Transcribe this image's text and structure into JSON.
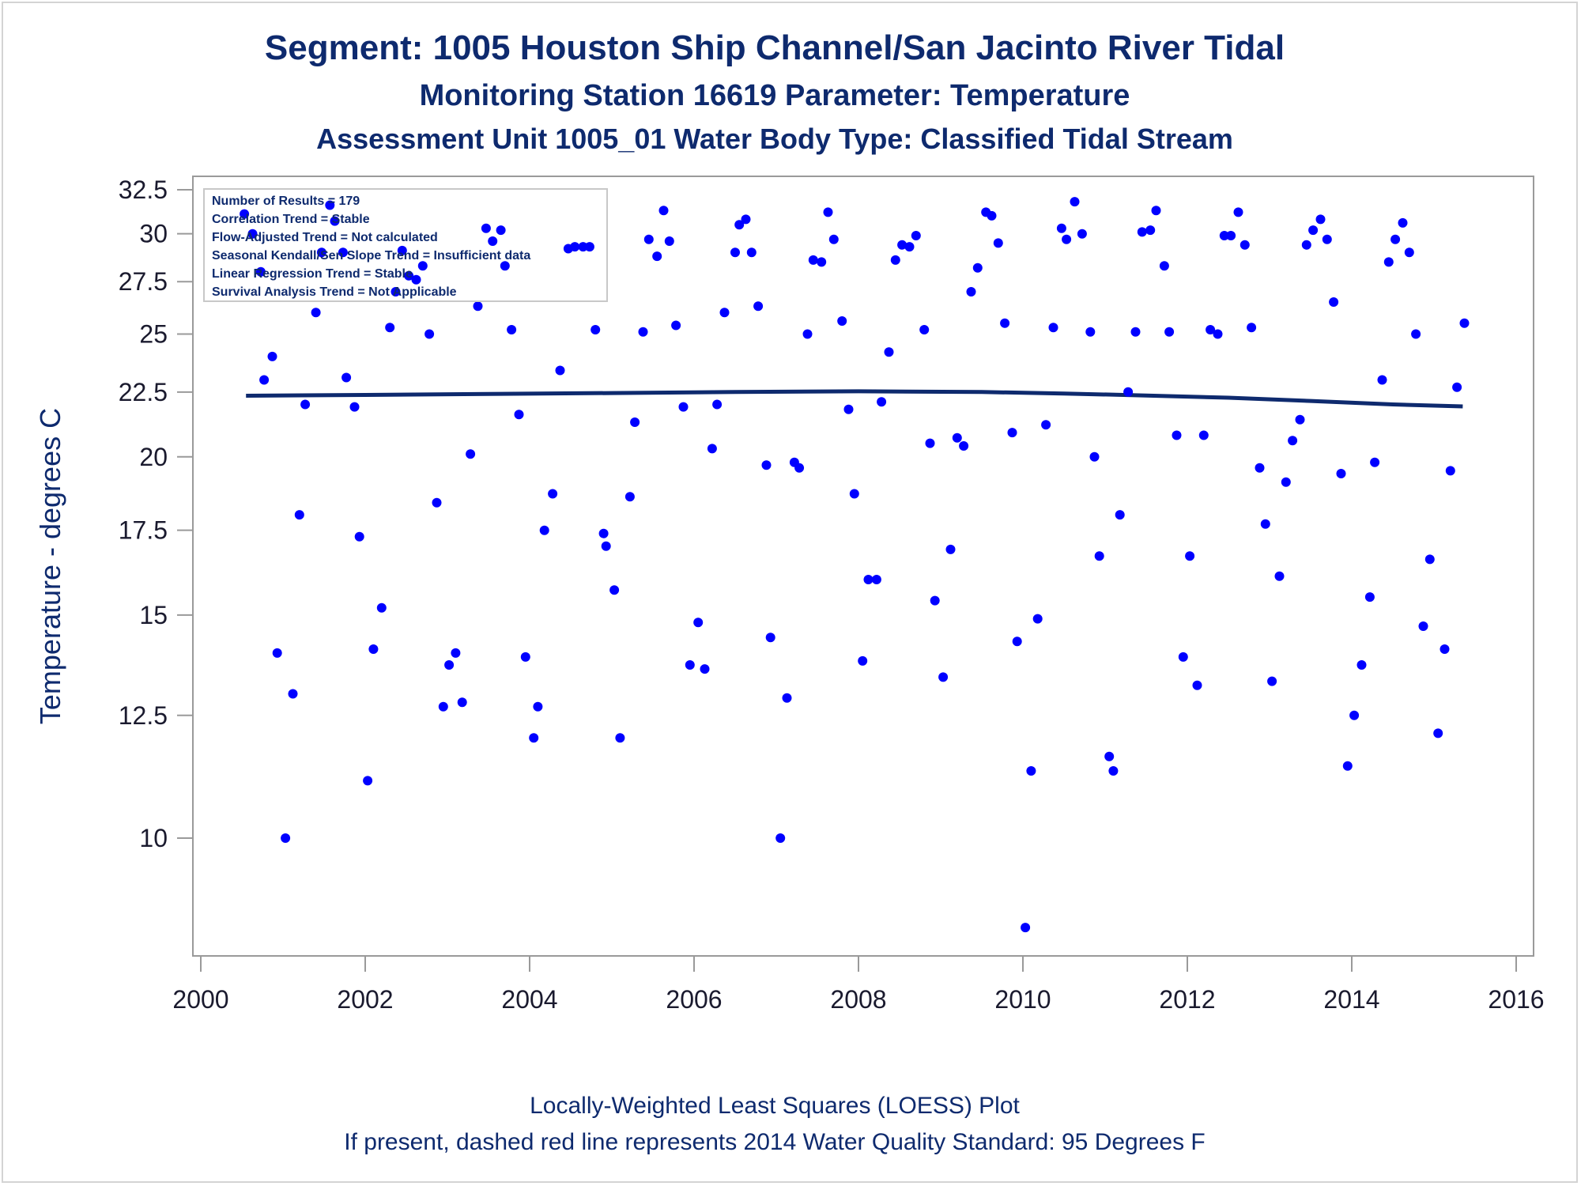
{
  "titles": {
    "line1": "Segment: 1005  Houston Ship Channel/San Jacinto River Tidal",
    "line2": "Monitoring Station 16619 Parameter: Temperature",
    "line3": "Assessment Unit 1005_01   Water Body Type: Classified Tidal Stream"
  },
  "footnotes": {
    "line1": "Locally-Weighted Least Squares (LOESS) Plot",
    "line2": "If present, dashed red line represents 2014 Water Quality Standard: 95   Degrees F"
  },
  "stats_box": [
    "Number of Results = 179",
    "Correlation Trend = Stable",
    "Flow-Adjusted Trend = Not calculated",
    "Seasonal Kendall/Sen Slope Trend = Insufficient data",
    "Linear Regression Trend = Stable",
    "Survival Analysis Trend = Not Applicable"
  ],
  "colors": {
    "points": "#0000ff",
    "loess": "#0e2a6e",
    "text": "#0e2a6e",
    "frame": "#9a9a9a"
  },
  "chart_data": {
    "type": "scatter",
    "title": "Segment: 1005  Houston Ship Channel/San Jacinto River Tidal",
    "xlabel": "",
    "ylabel": "Temperature - degrees C",
    "xlim": [
      2000,
      2016
    ],
    "ylim": [
      8,
      32.5
    ],
    "x_ticks": [
      "2000",
      "2002",
      "2004",
      "2006",
      "2008",
      "2010",
      "2012",
      "2014",
      "2016"
    ],
    "y_ticks": [
      "10",
      "12.5",
      "15",
      "17.5",
      "20",
      "22.5",
      "25",
      "27.5",
      "30",
      "32.5"
    ],
    "y_scale": "log",
    "grid": false,
    "legend": "top-left",
    "series": [
      {
        "type": "scatter",
        "points": [
          [
            2000.53,
            31.1
          ],
          [
            2000.63,
            30.0
          ],
          [
            2000.73,
            28.0
          ],
          [
            2000.77,
            23.0
          ],
          [
            2000.87,
            24.0
          ],
          [
            2000.93,
            14.0
          ],
          [
            2001.03,
            10.0
          ],
          [
            2001.12,
            13.0
          ],
          [
            2001.2,
            18.0
          ],
          [
            2001.27,
            22.0
          ],
          [
            2001.4,
            26.0
          ],
          [
            2001.47,
            29.0
          ],
          [
            2001.57,
            31.6
          ],
          [
            2001.63,
            30.7
          ],
          [
            2001.73,
            29.0
          ],
          [
            2001.77,
            23.1
          ],
          [
            2001.87,
            21.9
          ],
          [
            2001.93,
            17.3
          ],
          [
            2002.03,
            11.1
          ],
          [
            2002.1,
            14.1
          ],
          [
            2002.2,
            15.2
          ],
          [
            2002.3,
            25.3
          ],
          [
            2002.37,
            27.0
          ],
          [
            2002.45,
            29.1
          ],
          [
            2002.53,
            27.8
          ],
          [
            2002.62,
            27.6
          ],
          [
            2002.7,
            28.3
          ],
          [
            2002.78,
            25.0
          ],
          [
            2002.87,
            18.4
          ],
          [
            2002.95,
            12.7
          ],
          [
            2003.02,
            13.7
          ],
          [
            2003.1,
            14.0
          ],
          [
            2003.18,
            12.8
          ],
          [
            2003.28,
            20.1
          ],
          [
            2003.37,
            26.3
          ],
          [
            2003.47,
            30.3
          ],
          [
            2003.55,
            29.6
          ],
          [
            2003.65,
            30.2
          ],
          [
            2003.7,
            28.3
          ],
          [
            2003.78,
            25.2
          ],
          [
            2003.87,
            21.6
          ],
          [
            2003.95,
            13.9
          ],
          [
            2004.05,
            12.0
          ],
          [
            2004.1,
            12.7
          ],
          [
            2004.18,
            17.5
          ],
          [
            2004.28,
            18.7
          ],
          [
            2004.37,
            23.4
          ],
          [
            2004.47,
            29.2
          ],
          [
            2004.55,
            29.3
          ],
          [
            2004.65,
            29.3
          ],
          [
            2004.73,
            29.3
          ],
          [
            2004.8,
            25.2
          ],
          [
            2004.9,
            17.4
          ],
          [
            2004.93,
            17.0
          ],
          [
            2005.03,
            15.7
          ],
          [
            2005.1,
            12.0
          ],
          [
            2005.22,
            18.6
          ],
          [
            2005.28,
            21.3
          ],
          [
            2005.38,
            25.1
          ],
          [
            2005.45,
            29.7
          ],
          [
            2005.55,
            28.8
          ],
          [
            2005.63,
            31.3
          ],
          [
            2005.7,
            29.6
          ],
          [
            2005.78,
            25.4
          ],
          [
            2005.87,
            21.9
          ],
          [
            2005.95,
            13.7
          ],
          [
            2006.05,
            14.8
          ],
          [
            2006.13,
            13.6
          ],
          [
            2006.22,
            20.3
          ],
          [
            2006.28,
            22.0
          ],
          [
            2006.37,
            26.0
          ],
          [
            2006.5,
            29.0
          ],
          [
            2006.55,
            30.5
          ],
          [
            2006.63,
            30.8
          ],
          [
            2006.7,
            29.0
          ],
          [
            2006.78,
            26.3
          ],
          [
            2006.88,
            19.7
          ],
          [
            2006.93,
            14.4
          ],
          [
            2007.05,
            10.0
          ],
          [
            2007.13,
            12.9
          ],
          [
            2007.22,
            19.8
          ],
          [
            2007.28,
            19.6
          ],
          [
            2007.38,
            25.0
          ],
          [
            2007.45,
            28.6
          ],
          [
            2007.55,
            28.5
          ],
          [
            2007.63,
            31.2
          ],
          [
            2007.7,
            29.7
          ],
          [
            2007.8,
            25.6
          ],
          [
            2007.88,
            21.8
          ],
          [
            2007.95,
            18.7
          ],
          [
            2008.05,
            13.8
          ],
          [
            2008.12,
            16.0
          ],
          [
            2008.22,
            16.0
          ],
          [
            2008.28,
            22.1
          ],
          [
            2008.37,
            24.2
          ],
          [
            2008.45,
            28.6
          ],
          [
            2008.53,
            29.4
          ],
          [
            2008.62,
            29.3
          ],
          [
            2008.7,
            29.9
          ],
          [
            2008.8,
            25.2
          ],
          [
            2008.87,
            20.5
          ],
          [
            2008.93,
            15.4
          ],
          [
            2009.03,
            13.4
          ],
          [
            2009.12,
            16.9
          ],
          [
            2009.2,
            20.7
          ],
          [
            2009.28,
            20.4
          ],
          [
            2009.37,
            27.0
          ],
          [
            2009.45,
            28.2
          ],
          [
            2009.55,
            31.2
          ],
          [
            2009.62,
            31.0
          ],
          [
            2009.7,
            29.5
          ],
          [
            2009.78,
            25.5
          ],
          [
            2009.87,
            20.9
          ],
          [
            2009.93,
            14.3
          ],
          [
            2010.03,
            8.5
          ],
          [
            2010.1,
            11.3
          ],
          [
            2010.18,
            14.9
          ],
          [
            2010.28,
            21.2
          ],
          [
            2010.37,
            25.3
          ],
          [
            2010.47,
            30.3
          ],
          [
            2010.53,
            29.7
          ],
          [
            2010.63,
            31.8
          ],
          [
            2010.72,
            30.0
          ],
          [
            2010.82,
            25.1
          ],
          [
            2010.87,
            20.0
          ],
          [
            2010.93,
            16.7
          ],
          [
            2011.05,
            11.6
          ],
          [
            2011.1,
            11.3
          ],
          [
            2011.18,
            18.0
          ],
          [
            2011.28,
            22.5
          ],
          [
            2011.37,
            25.1
          ],
          [
            2011.45,
            30.1
          ],
          [
            2011.55,
            30.2
          ],
          [
            2011.62,
            31.3
          ],
          [
            2011.72,
            28.3
          ],
          [
            2011.78,
            25.1
          ],
          [
            2011.87,
            20.8
          ],
          [
            2011.95,
            13.9
          ],
          [
            2012.03,
            16.7
          ],
          [
            2012.12,
            13.2
          ],
          [
            2012.2,
            20.8
          ],
          [
            2012.28,
            25.2
          ],
          [
            2012.37,
            25.0
          ],
          [
            2012.45,
            29.9
          ],
          [
            2012.53,
            29.9
          ],
          [
            2012.62,
            31.2
          ],
          [
            2012.7,
            29.4
          ],
          [
            2012.78,
            25.3
          ],
          [
            2012.88,
            19.6
          ],
          [
            2012.95,
            17.7
          ],
          [
            2013.03,
            13.3
          ],
          [
            2013.12,
            16.1
          ],
          [
            2013.2,
            19.1
          ],
          [
            2013.28,
            20.6
          ],
          [
            2013.37,
            21.4
          ],
          [
            2013.45,
            29.4
          ],
          [
            2013.53,
            30.2
          ],
          [
            2013.62,
            30.8
          ],
          [
            2013.7,
            29.7
          ],
          [
            2013.78,
            26.5
          ],
          [
            2013.87,
            19.4
          ],
          [
            2013.95,
            11.4
          ],
          [
            2014.03,
            12.5
          ],
          [
            2014.12,
            13.7
          ],
          [
            2014.22,
            15.5
          ],
          [
            2014.28,
            19.8
          ],
          [
            2014.37,
            23.0
          ],
          [
            2014.45,
            28.5
          ],
          [
            2014.53,
            29.7
          ],
          [
            2014.62,
            30.6
          ],
          [
            2014.7,
            29.0
          ],
          [
            2014.78,
            25.0
          ],
          [
            2014.87,
            14.7
          ],
          [
            2014.95,
            16.6
          ],
          [
            2015.05,
            12.1
          ],
          [
            2015.13,
            14.1
          ],
          [
            2015.2,
            19.5
          ],
          [
            2015.28,
            22.7
          ],
          [
            2015.37,
            25.5
          ]
        ]
      },
      {
        "type": "line",
        "points": [
          [
            2000.55,
            22.35
          ],
          [
            2002.0,
            22.38
          ],
          [
            2003.5,
            22.42
          ],
          [
            2005.0,
            22.46
          ],
          [
            2006.5,
            22.5
          ],
          [
            2008.0,
            22.53
          ],
          [
            2009.5,
            22.5
          ],
          [
            2010.5,
            22.44
          ],
          [
            2011.5,
            22.36
          ],
          [
            2012.5,
            22.27
          ],
          [
            2013.5,
            22.14
          ],
          [
            2014.5,
            22.0
          ],
          [
            2015.35,
            21.92
          ]
        ]
      }
    ]
  }
}
